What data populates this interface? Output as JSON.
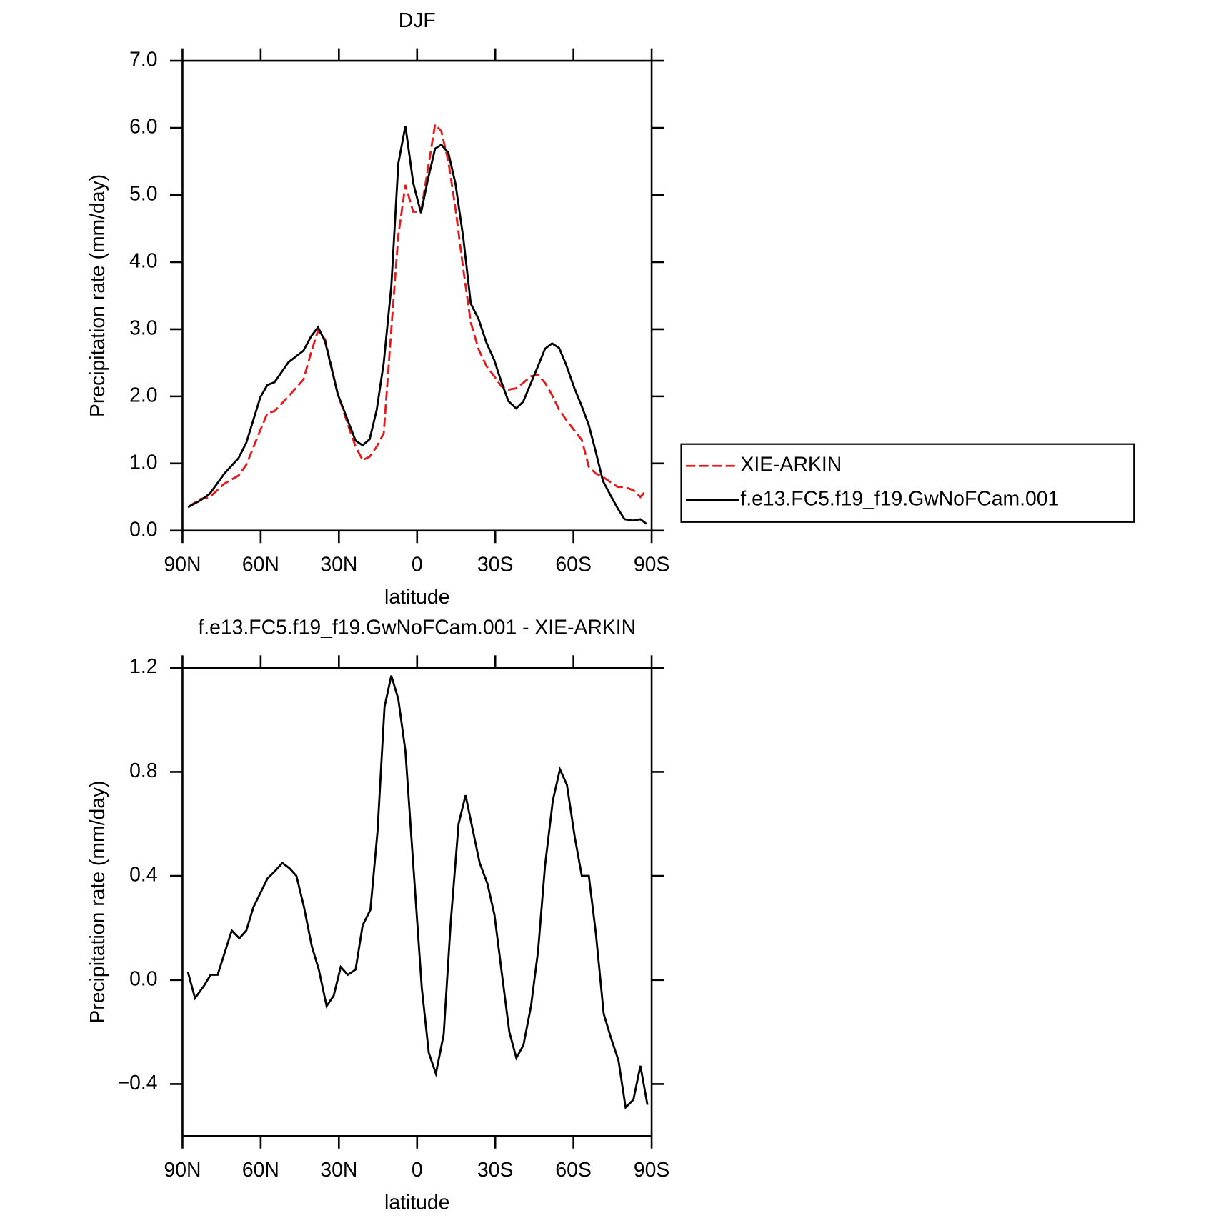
{
  "chart_data": [
    {
      "type": "line",
      "title": "DJF",
      "xlabel": "latitude",
      "ylabel": "Precipitation rate (mm/day)",
      "x": [
        87.9,
        83.1,
        79.5,
        73.9,
        68.5,
        65.5,
        60.1,
        57.4,
        54.7,
        49.3,
        43.6,
        40.7,
        38,
        35.3,
        30.5,
        26.3,
        23.6,
        20.9,
        18.2,
        15.5,
        12.8,
        9.9,
        7.2,
        4.5,
        1.5,
        -1.5,
        -4.2,
        -6.9,
        -9.3,
        -12,
        -14.7,
        -17.7,
        -20.6,
        -23.6,
        -26.6,
        -29.6,
        -32.3,
        -35,
        -38,
        -40.7,
        -43.7,
        -46.4,
        -49.1,
        -51.8,
        -54.5,
        -57.2,
        -60.2,
        -63.2,
        -65.9,
        -68.6,
        -71.3,
        -74.3,
        -77,
        -79.6,
        -83,
        -85.7,
        -88
      ],
      "series": [
        {
          "name": "XIE-ARKIN",
          "color": "#e41a1c",
          "dash": true,
          "values": [
            0.35,
            0.47,
            0.5,
            0.7,
            0.82,
            0.98,
            1.5,
            1.75,
            1.78,
            2.0,
            2.25,
            2.65,
            2.98,
            2.85,
            2.05,
            1.55,
            1.25,
            1.05,
            1.1,
            1.25,
            1.45,
            3.0,
            4.4,
            5.15,
            4.75,
            4.75,
            5.4,
            6.05,
            5.95,
            5.5,
            4.8,
            3.9,
            3.1,
            2.7,
            2.45,
            2.3,
            2.15,
            2.1,
            2.12,
            2.2,
            2.3,
            2.32,
            2.2,
            2.02,
            1.8,
            1.65,
            1.5,
            1.35,
            0.95,
            0.85,
            0.8,
            0.72,
            0.65,
            0.65,
            0.6,
            0.5,
            0.6
          ]
        },
        {
          "name": "f.e13.FC5.f19_f19.GwNoFCam.001",
          "color": "#000000",
          "dash": false,
          "values": [
            0.35,
            0.45,
            0.55,
            0.85,
            1.08,
            1.31,
            1.99,
            2.17,
            2.21,
            2.51,
            2.68,
            2.89,
            3.03,
            2.82,
            2.04,
            1.61,
            1.34,
            1.27,
            1.36,
            1.8,
            2.5,
            3.64,
            5.47,
            6.03,
            5.18,
            4.73,
            5.24,
            5.69,
            5.75,
            5.63,
            5.17,
            4.37,
            3.38,
            3.15,
            2.8,
            2.54,
            2.22,
            1.93,
            1.82,
            1.92,
            2.2,
            2.45,
            2.71,
            2.79,
            2.72,
            2.47,
            2.14,
            1.85,
            1.57,
            1.17,
            0.74,
            0.52,
            0.33,
            0.17,
            0.15,
            0.17,
            0.1
          ]
        }
      ],
      "xlim": [
        90,
        -90
      ],
      "xticks": [
        {
          "value": 90,
          "label": "90N"
        },
        {
          "value": 60,
          "label": "60N"
        },
        {
          "value": 30,
          "label": "30N"
        },
        0,
        {
          "value": -30,
          "label": "30S"
        },
        {
          "value": -60,
          "label": "60S"
        },
        {
          "value": -90,
          "label": "90S"
        }
      ],
      "ylim": [
        0,
        7
      ],
      "yticks": [
        {
          "value": 0,
          "label": "0.0"
        },
        {
          "value": 1,
          "label": "1.0"
        },
        {
          "value": 2,
          "label": "2.0"
        },
        {
          "value": 3,
          "label": "3.0"
        },
        {
          "value": 4,
          "label": "4.0"
        },
        {
          "value": 5,
          "label": "5.0"
        },
        {
          "value": 6,
          "label": "6.0"
        },
        {
          "value": 7,
          "label": "7.0"
        }
      ],
      "legend": "outside-right"
    },
    {
      "type": "line",
      "title": "f.e13.FC5.f19_f19.GwNoFCam.001 - XIE-ARKIN",
      "xlabel": "latitude",
      "ylabel": "Precipitation rate (mm/day)",
      "x": [
        87.9,
        85.2,
        81.6,
        79.2,
        76.5,
        71.1,
        68.2,
        65.5,
        62.8,
        57.4,
        54.4,
        51.7,
        49,
        46.3,
        43.4,
        40.4,
        37.7,
        34.7,
        32,
        29.3,
        26.6,
        23.6,
        20.9,
        17.9,
        15.2,
        12.5,
        9.9,
        7.2,
        4.5,
        -1.8,
        -4.5,
        -7.2,
        -10.2,
        -12.9,
        -15.9,
        -18.6,
        -21.3,
        -24,
        -27,
        -29.7,
        -32.7,
        -35.4,
        -38.1,
        -40.8,
        -43.7,
        -46.4,
        -49.1,
        -52.1,
        -54.8,
        -57.5,
        -60.5,
        -63.2,
        -65.9,
        -68.6,
        -71.6,
        -74.3,
        -77.3,
        -80,
        -83,
        -85.7,
        -88.4
      ],
      "series": [
        {
          "color": "#000000",
          "dash": false,
          "values": [
            0.03,
            -0.07,
            -0.02,
            0.02,
            0.02,
            0.19,
            0.16,
            0.19,
            0.28,
            0.39,
            0.42,
            0.45,
            0.43,
            0.4,
            0.28,
            0.13,
            0.04,
            -0.1,
            -0.06,
            0.05,
            0.02,
            0.04,
            0.21,
            0.27,
            0.57,
            1.05,
            1.17,
            1.08,
            0.88,
            -0.03,
            -0.28,
            -0.36,
            -0.21,
            0.22,
            0.6,
            0.71,
            0.58,
            0.45,
            0.37,
            0.25,
            0.01,
            -0.2,
            -0.3,
            -0.25,
            -0.1,
            0.11,
            0.44,
            0.69,
            0.81,
            0.75,
            0.55,
            0.4,
            0.4,
            0.18,
            -0.13,
            -0.22,
            -0.31,
            -0.49,
            -0.46,
            -0.33,
            -0.48
          ]
        }
      ],
      "xlim": [
        90,
        -90
      ],
      "xticks": [
        {
          "value": 90,
          "label": "90N"
        },
        {
          "value": 60,
          "label": "60N"
        },
        {
          "value": 30,
          "label": "30N"
        },
        0,
        {
          "value": -30,
          "label": "30S"
        },
        {
          "value": -60,
          "label": "60S"
        },
        {
          "value": -90,
          "label": "90S"
        }
      ],
      "ylim": [
        -0.6,
        1.2
      ],
      "yticks": [
        {
          "value": -0.4,
          "label": "−0.4"
        },
        {
          "value": 0,
          "label": "0.0"
        },
        {
          "value": 0.4,
          "label": "0.4"
        },
        {
          "value": 0.8,
          "label": "0.8"
        },
        {
          "value": 1.2,
          "label": "1.2"
        }
      ]
    }
  ]
}
